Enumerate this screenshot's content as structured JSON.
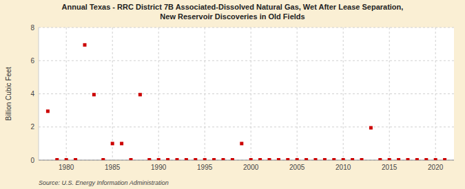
{
  "chart_data": {
    "type": "scatter",
    "title": "Annual Texas - RRC District 7B Associated-Dissolved Natural Gas, Wet After Lease Separation,\nNew Reservoir Discoveries in Old Fields",
    "ylabel": "Billion Cubic Feet",
    "source": "Source: U.S. Energy Information Administration",
    "color": "#cc0000",
    "marker": "square",
    "grid": true,
    "xlim": [
      1977,
      2022
    ],
    "ylim": [
      0,
      8
    ],
    "xticks": [
      1980,
      1985,
      1990,
      1995,
      2000,
      2005,
      2010,
      2015,
      2020
    ],
    "yticks": [
      0,
      2,
      4,
      6,
      8
    ],
    "x": [
      1978,
      1979,
      1980,
      1981,
      1982,
      1983,
      1984,
      1985,
      1986,
      1987,
      1988,
      1989,
      1990,
      1991,
      1992,
      1993,
      1994,
      1995,
      1996,
      1997,
      1998,
      1999,
      2000,
      2001,
      2002,
      2003,
      2004,
      2005,
      2006,
      2007,
      2008,
      2009,
      2010,
      2011,
      2012,
      2013,
      2014,
      2015,
      2016,
      2017,
      2018,
      2019,
      2020,
      2021
    ],
    "values": [
      2.95,
      0.02,
      0.02,
      0.02,
      6.95,
      3.95,
      0.02,
      1.0,
      1.0,
      0.02,
      3.95,
      0.02,
      0.02,
      0.02,
      0.02,
      0.02,
      0.02,
      0.02,
      0.02,
      0.02,
      0.02,
      1.0,
      0.02,
      0.02,
      0.02,
      0.02,
      0.02,
      0.02,
      0.02,
      0.02,
      0.02,
      0.02,
      0.02,
      0.02,
      0.02,
      1.95,
      0.02,
      0.02,
      0.02,
      0.02,
      0.02,
      0.02,
      0.02,
      0.02
    ]
  }
}
